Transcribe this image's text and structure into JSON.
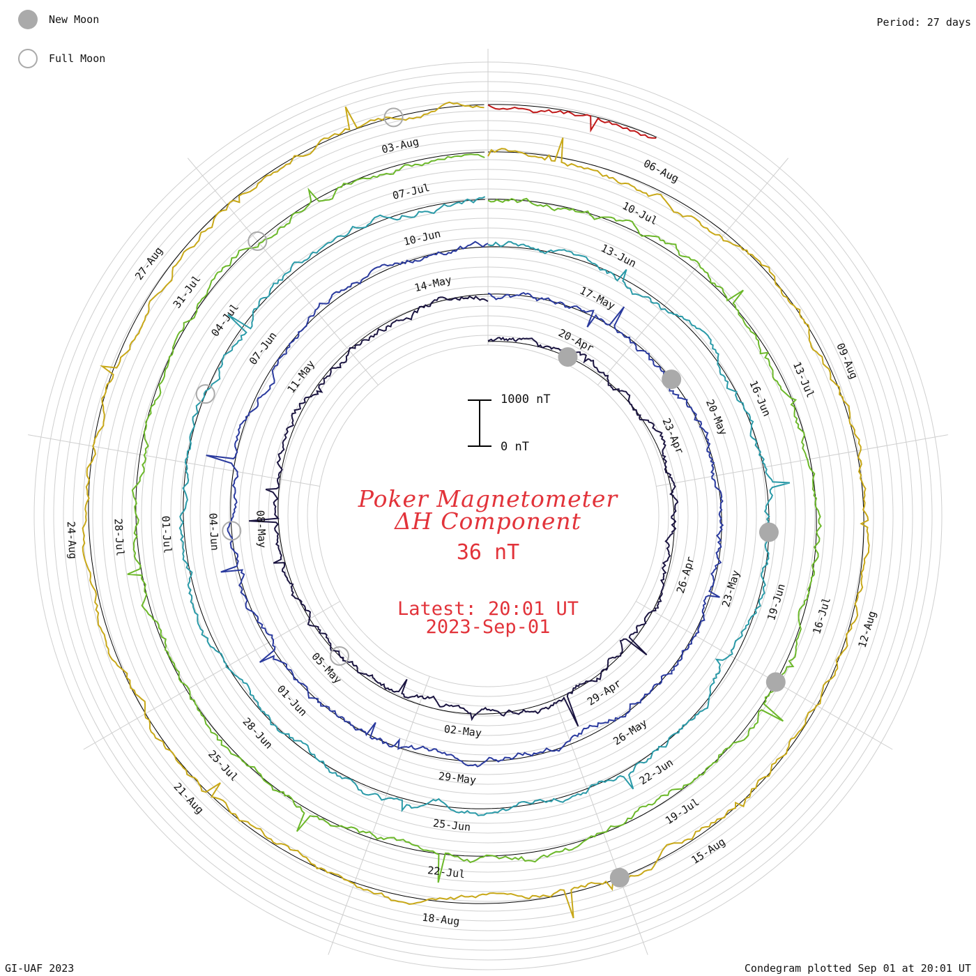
{
  "legend": {
    "new_moon_label": "New Moon",
    "full_moon_label": "Full Moon",
    "new_moon_color": "#aaaaaa",
    "full_moon_color": "#aaaaaa"
  },
  "period_label": "Period: 27 days",
  "title_line1": "Poker Magnetometer",
  "title_line2": "ΔH Component",
  "scale_value": "36 nT",
  "latest_line1": "Latest: 20:01 UT",
  "latest_line2": "2023-Sep-01",
  "scale_bar": {
    "top_label": "1000 nT",
    "bottom_label": "0 nT"
  },
  "credit": "GI-UAF 2023",
  "plotted_label": "Condegram plotted Sep 01 at 20:01 UT",
  "accent_color": "#e2333a",
  "chart_data": {
    "type": "line",
    "title": "Poker Magnetometer ΔH Component",
    "subtitle": "36 nT",
    "period_days": 27,
    "radial_scale_nT": [
      0,
      1000
    ],
    "series": [
      {
        "start": "2023-04-18",
        "color": "#1a1440",
        "date_labels": [
          "20-Apr",
          "23-Apr",
          "26-Apr",
          "29-Apr",
          "02-May",
          "05-May",
          "08-May",
          "11-May",
          "14-May"
        ]
      },
      {
        "start": "2023-05-15",
        "color": "#2a3a9e",
        "date_labels": [
          "17-May",
          "20-May",
          "23-May",
          "26-May",
          "29-May",
          "01-Jun",
          "04-Jun",
          "07-Jun",
          "10-Jun"
        ]
      },
      {
        "start": "2023-06-11",
        "color": "#2a9aa8",
        "date_labels": [
          "13-Jun",
          "16-Jun",
          "19-Jun",
          "22-Jun",
          "25-Jun",
          "28-Jun",
          "01-Jul",
          "04-Jul",
          "07-Jul"
        ]
      },
      {
        "start": "2023-07-08",
        "color": "#6cb82a",
        "date_labels": [
          "10-Jul",
          "13-Jul",
          "16-Jul",
          "19-Jul",
          "22-Jul",
          "25-Jul",
          "28-Jul",
          "31-Jul",
          "03-Aug"
        ]
      },
      {
        "start": "2023-08-04",
        "color": "#c8a818",
        "date_labels": [
          "06-Aug",
          "09-Aug",
          "12-Aug",
          "15-Aug",
          "18-Aug",
          "21-Aug",
          "24-Aug",
          "27-Aug"
        ]
      },
      {
        "start": "2023-08-31",
        "color": "#c01818",
        "date_labels": []
      }
    ],
    "new_moon_dates": [
      "2023-04-20",
      "2023-05-19",
      "2023-06-18",
      "2023-07-17",
      "2023-08-16"
    ],
    "full_moon_dates": [
      "2023-05-05",
      "2023-06-04",
      "2023-07-03",
      "2023-08-01",
      "2023-08-30"
    ]
  }
}
